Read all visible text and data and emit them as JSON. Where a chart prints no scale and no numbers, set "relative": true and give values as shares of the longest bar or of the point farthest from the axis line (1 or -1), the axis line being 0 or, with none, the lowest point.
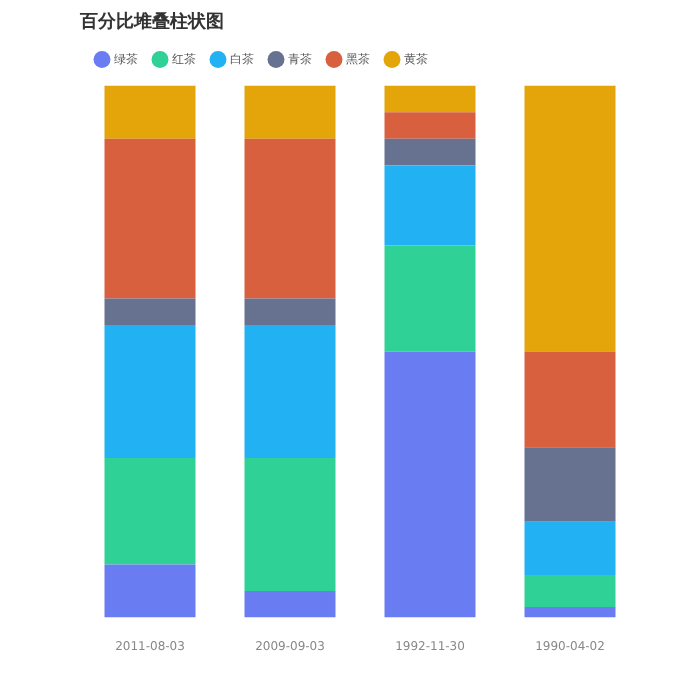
{
  "chart_data": {
    "type": "bar",
    "title": "百分比堆叠柱状图",
    "categories": [
      "2011-08-03",
      "2009-09-03",
      "1992-11-30",
      "1990-04-02"
    ],
    "stacked": true,
    "relative": true,
    "legend": "top left",
    "series": [
      {
        "name": "绿茶",
        "color": "#6a7cf2",
        "values": [
          0.1,
          0.05,
          0.5,
          0.02
        ]
      },
      {
        "name": "红茶",
        "color": "#2fd196",
        "values": [
          0.2,
          0.25,
          0.2,
          0.06
        ]
      },
      {
        "name": "白茶",
        "color": "#22b2f4",
        "values": [
          0.25,
          0.25,
          0.15,
          0.1
        ]
      },
      {
        "name": "青茶",
        "color": "#66728f",
        "values": [
          0.05,
          0.05,
          0.05,
          0.14
        ]
      },
      {
        "name": "黑茶",
        "color": "#d9603f",
        "values": [
          0.3,
          0.3,
          0.05,
          0.18
        ]
      },
      {
        "name": "黄茶",
        "color": "#e3a50a",
        "values": [
          0.1,
          0.1,
          0.05,
          0.5
        ]
      }
    ]
  }
}
